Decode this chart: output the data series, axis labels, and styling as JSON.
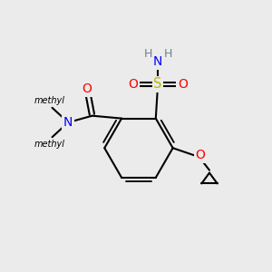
{
  "bg_color": "#ebebeb",
  "bond_color": "#000000",
  "bond_width": 1.5,
  "atom_colors": {
    "O": "#ff0000",
    "N": "#0000ff",
    "S": "#b8b800",
    "H": "#708090",
    "C": "#000000"
  },
  "figsize": [
    3.0,
    3.0
  ],
  "dpi": 100
}
